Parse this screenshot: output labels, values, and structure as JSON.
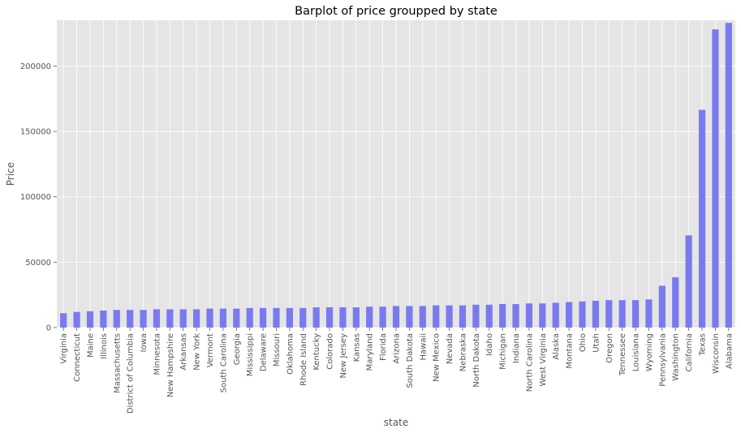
{
  "chart_data": {
    "type": "bar",
    "title": "Barplot of price groupped by state",
    "xlabel": "state",
    "ylabel": "Price",
    "ylim": [
      0,
      235000
    ],
    "yticks": [
      0,
      50000,
      100000,
      150000,
      200000
    ],
    "ytick_labels": [
      "0",
      "50000",
      "100000",
      "150000",
      "200000"
    ],
    "grid": true,
    "categories": [
      "Virginia",
      "Connecticut",
      "Maine",
      "Illinois",
      "Massachusetts",
      "District of Columbia",
      "Iowa",
      "Minnesota",
      "New Hampshire",
      "Arkansas",
      "New York",
      "Vermont",
      "South Carolina",
      "Georgia",
      "Mississippi",
      "Delaware",
      "Missouri",
      "Oklahoma",
      "Rhode Island",
      "Kentucky",
      "Colorado",
      "New Jersey",
      "Kansas",
      "Maryland",
      "Florida",
      "Arizona",
      "South Dakota",
      "Hawaii",
      "New Mexico",
      "Nevada",
      "Nebraska",
      "North Dakota",
      "Idaho",
      "Michigan",
      "Indiana",
      "North Carolina",
      "West Virginia",
      "Alaska",
      "Montana",
      "Ohio",
      "Utah",
      "Oregon",
      "Tennessee",
      "Louisiana",
      "Wyoming",
      "Pennsylvania",
      "Washington",
      "California",
      "Texas",
      "Wisconsin",
      "Alabama"
    ],
    "values": [
      11000,
      12000,
      12500,
      13000,
      13500,
      13500,
      13500,
      14000,
      14000,
      14000,
      14000,
      14500,
      14500,
      14500,
      15000,
      15000,
      15000,
      15000,
      15000,
      15500,
      15500,
      15500,
      15500,
      16000,
      16000,
      16500,
      16500,
      16500,
      17000,
      17000,
      17000,
      17500,
      17500,
      18000,
      18000,
      18500,
      18500,
      19000,
      19500,
      20000,
      20500,
      21000,
      21000,
      21000,
      21500,
      32000,
      38500,
      70500,
      166500,
      228000,
      233000
    ],
    "colors": {
      "bar": "#7a7aef",
      "background": "#e5e5e5",
      "grid": "#ffffff",
      "tick": "#555555"
    }
  }
}
